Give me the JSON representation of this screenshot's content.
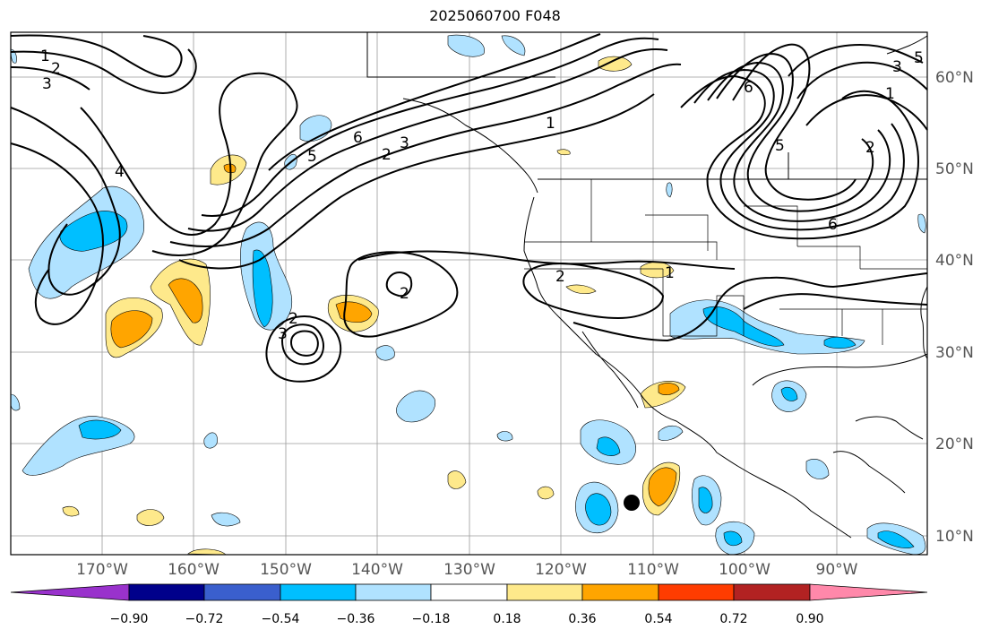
{
  "title": "2025060700 F048",
  "map": {
    "lon_labels": [
      "170°W",
      "160°W",
      "150°W",
      "140°W",
      "130°W",
      "120°W",
      "110°W",
      "100°W",
      "90°W"
    ],
    "lat_labels": [
      "60°N",
      "50°N",
      "40°N",
      "30°N",
      "20°N",
      "10°N"
    ],
    "contour_labels": [
      "1",
      "2",
      "3",
      "4",
      "5",
      "6",
      "1",
      "2",
      "3",
      "5",
      "6",
      "1",
      "2",
      "3",
      "5",
      "6",
      "2",
      "2",
      "3",
      "1",
      "2"
    ],
    "marker": "black-dot"
  },
  "colorbar": {
    "ticks": [
      "−0.90",
      "−0.72",
      "−0.54",
      "−0.36",
      "−0.18",
      "0.18",
      "0.36",
      "0.54",
      "0.72",
      "0.90"
    ],
    "colors": [
      "#9932cc",
      "#00008b",
      "#3a5fcd",
      "#00bfff",
      "#b0e2ff",
      "#ffffff",
      "#fee98b",
      "#ffa500",
      "#ff3c00",
      "#b22222",
      "#ff88aa"
    ]
  }
}
